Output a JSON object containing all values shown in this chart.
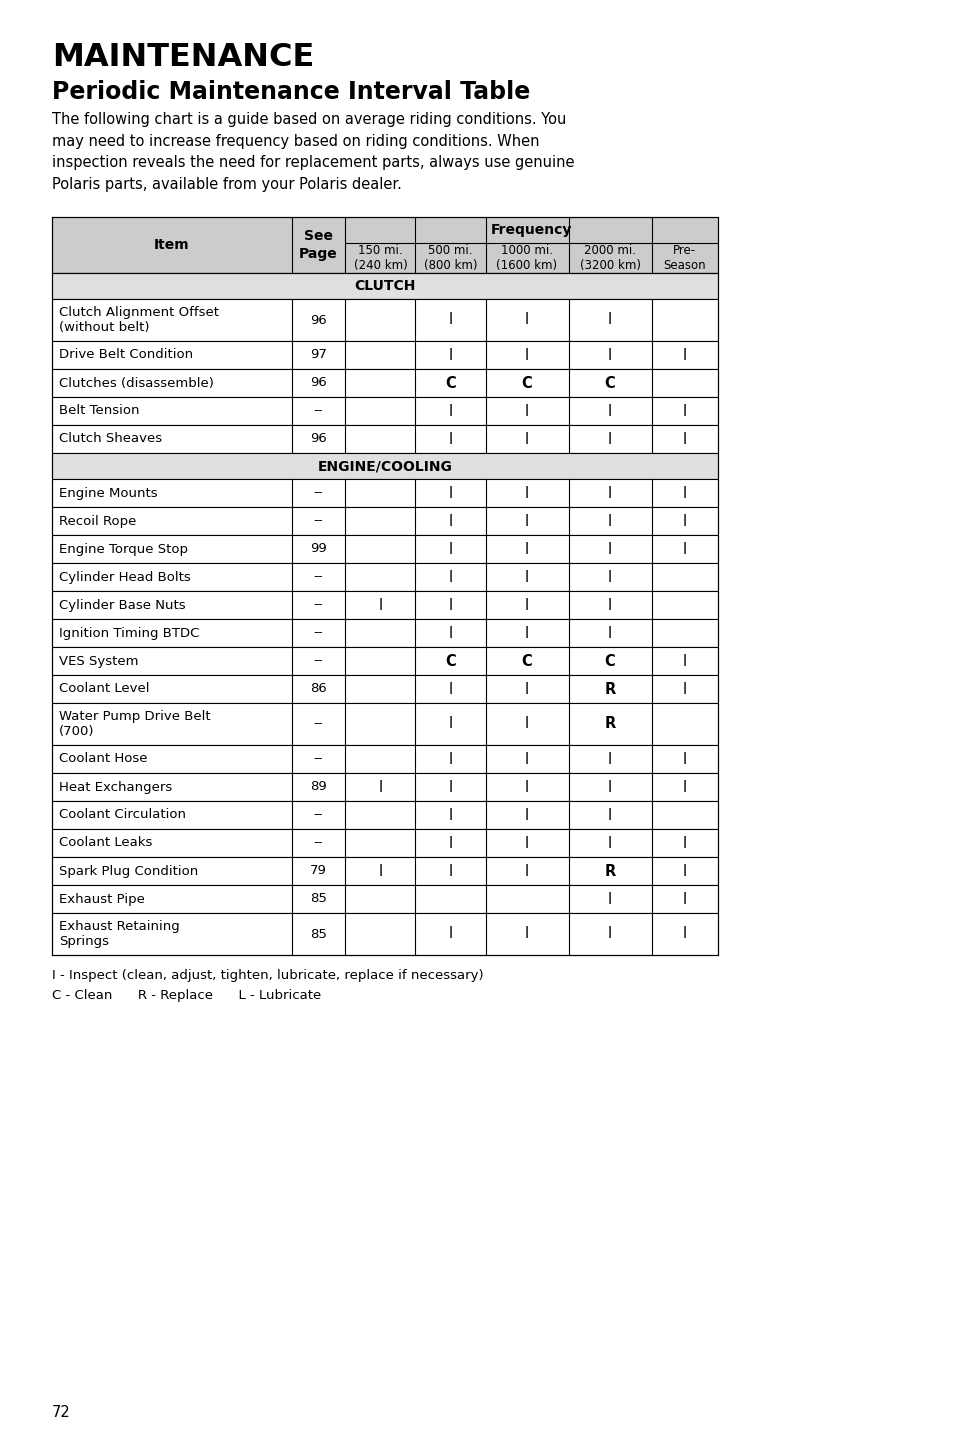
{
  "title1": "MAINTENANCE",
  "title2": "Periodic Maintenance Interval Table",
  "intro_text": "The following chart is a guide based on average riding conditions. You\nmay need to increase frequency based on riding conditions. When\ninspection reveals the need for replacement parts, always use genuine\nPolaris parts, available from your Polaris dealer.",
  "section_clutch": "CLUTCH",
  "section_engine": "ENGINE/COOLING",
  "rows": [
    [
      "Clutch Alignment Offset\n(without belt)",
      "96",
      "",
      "I",
      "I",
      "I",
      ""
    ],
    [
      "Drive Belt Condition",
      "97",
      "",
      "I",
      "I",
      "I",
      "I"
    ],
    [
      "Clutches (disassemble)",
      "96",
      "",
      "C",
      "C",
      "C",
      ""
    ],
    [
      "Belt Tension",
      "--",
      "",
      "I",
      "I",
      "I",
      "I"
    ],
    [
      "Clutch Sheaves",
      "96",
      "",
      "I",
      "I",
      "I",
      "I"
    ],
    [
      "__SECTION__ENGINE/COOLING__",
      "",
      "",
      "",
      "",
      "",
      ""
    ],
    [
      "Engine Mounts",
      "--",
      "",
      "I",
      "I",
      "I",
      "I"
    ],
    [
      "Recoil Rope",
      "--",
      "",
      "I",
      "I",
      "I",
      "I"
    ],
    [
      "Engine Torque Stop",
      "99",
      "",
      "I",
      "I",
      "I",
      "I"
    ],
    [
      "Cylinder Head Bolts",
      "--",
      "",
      "I",
      "I",
      "I",
      ""
    ],
    [
      "Cylinder Base Nuts",
      "--",
      "I",
      "I",
      "I",
      "I",
      ""
    ],
    [
      "Ignition Timing BTDC",
      "--",
      "",
      "I",
      "I",
      "I",
      ""
    ],
    [
      "VES System",
      "--",
      "",
      "C",
      "C",
      "C",
      "I"
    ],
    [
      "Coolant Level",
      "86",
      "",
      "I",
      "I",
      "R",
      "I"
    ],
    [
      "Water Pump Drive Belt\n(700)",
      "--",
      "",
      "I",
      "I",
      "R",
      ""
    ],
    [
      "Coolant Hose",
      "--",
      "",
      "I",
      "I",
      "I",
      "I"
    ],
    [
      "Heat Exchangers",
      "89",
      "I",
      "I",
      "I",
      "I",
      "I"
    ],
    [
      "Coolant Circulation",
      "--",
      "",
      "I",
      "I",
      "I",
      ""
    ],
    [
      "Coolant Leaks",
      "--",
      "",
      "I",
      "I",
      "I",
      "I"
    ],
    [
      "Spark Plug Condition",
      "79",
      "I",
      "I",
      "I",
      "R",
      "I"
    ],
    [
      "Exhaust Pipe",
      "85",
      "",
      "",
      "",
      "I",
      "I"
    ],
    [
      "Exhaust Retaining\nSprings",
      "85",
      "",
      "I",
      "I",
      "I",
      "I"
    ]
  ],
  "footer_line1": "I - Inspect (clean, adjust, tighten, lubricate, replace if necessary)",
  "footer_line2": "C - Clean      R - Replace      L - Lubricate",
  "page_number": "72",
  "header_bg": "#cccccc",
  "section_bg": "#e0e0e0",
  "white_bg": "#ffffff",
  "border_color": "#000000",
  "text_color": "#000000"
}
